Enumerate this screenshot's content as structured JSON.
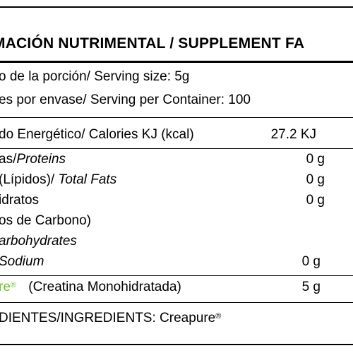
{
  "title": "MACIÓN NUTRIMENTAL / SUPPLEMENT FA",
  "serving_size": "o de la porción/ Serving size: 5g",
  "servings_per_container": "es por envase/ Serving per Container: 100",
  "rows": {
    "energy": {
      "label": "do Energético/ Calories KJ (kcal)",
      "value": "27.2 KJ"
    },
    "proteins": {
      "label_plain": "as/",
      "label_italic": "Proteins",
      "value": "0 g"
    },
    "fats": {
      "label_plain": "(Lípidos)/ ",
      "label_italic": "Total Fats",
      "value": "0 g"
    },
    "carbs": {
      "line1": "idratos",
      "line2": "os de Carbono)",
      "line3": "arbohydrates",
      "value": "0 g"
    },
    "sodium": {
      "label": "Sodium",
      "value": "0 g"
    },
    "creatine": {
      "brand": "re",
      "reg": "®",
      "label": "(Creatina Monohidratada)",
      "value": "5 g"
    }
  },
  "ingredients": {
    "label": "DIENTES/INGREDIENTS: Creapure",
    "reg": "®"
  },
  "colors": {
    "accent": "#6fbe2c",
    "text": "#000000",
    "background": "#ffffff"
  }
}
